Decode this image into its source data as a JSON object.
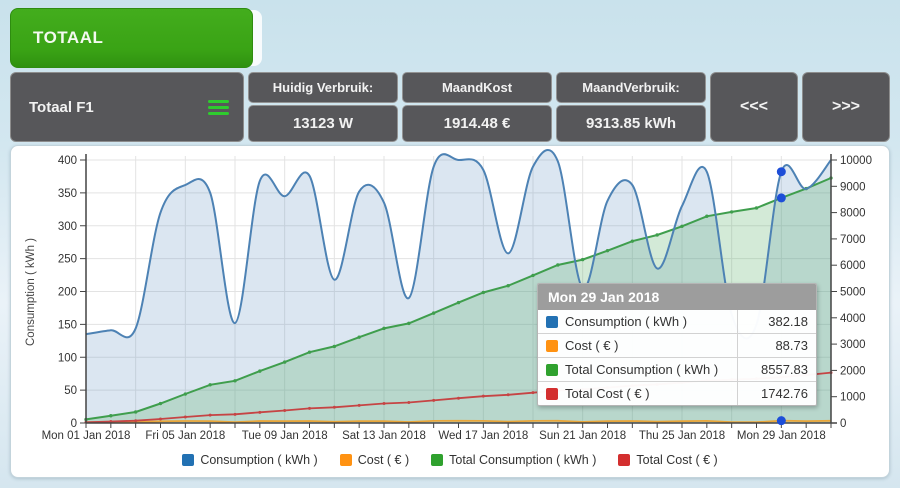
{
  "page": {
    "totaal_button": "TOTAAL"
  },
  "header": {
    "device_label": "Totaal F1",
    "menu_icon": "hamburger-icon",
    "stats": [
      {
        "label": "Huidig Verbruik:",
        "value": "13123 W"
      },
      {
        "label": "MaandKost",
        "value": "1914.48 €"
      },
      {
        "label": "MaandVerbruik:",
        "value": "9313.85 kWh"
      }
    ],
    "nav_prev": "<<<",
    "nav_next": ">>>"
  },
  "chart_data": {
    "type": "area",
    "title": "",
    "x_days": 31,
    "x_label_days": [
      1,
      5,
      9,
      13,
      17,
      21,
      25,
      29
    ],
    "x_tick_labels": [
      "Mon 01 Jan 2018",
      "Fri 05 Jan 2018",
      "Tue 09 Jan 2018",
      "Sat 13 Jan 2018",
      "Wed 17 Jan 2018",
      "Sun 21 Jan 2018",
      "Thu 25 Jan 2018",
      "Mon 29 Jan 2018"
    ],
    "left_axis": {
      "label": "Consumption ( kWh )",
      "min": 0,
      "max": 400,
      "step": 50
    },
    "right_axis": {
      "min": 0,
      "max": 10000,
      "step": 1000
    },
    "grid": true,
    "legend_position": "bottom",
    "series": [
      {
        "name": "Consumption ( kWh )",
        "axis": "left",
        "type": "area",
        "smooth": true,
        "color": "#4d82b4",
        "fill": "rgba(90,140,190,0.22)",
        "values": [
          135,
          141,
          144,
          320,
          362,
          350,
          152,
          368,
          345,
          376,
          218,
          352,
          335,
          190,
          390,
          400,
          385,
          258,
          390,
          398,
          205,
          338,
          362,
          235,
          330,
          382,
          165,
          150,
          382.18,
          356,
          400
        ]
      },
      {
        "name": "Cost ( € )",
        "axis": "right",
        "type": "line",
        "smooth": false,
        "color": "#e9a63a",
        "fill": null,
        "values": [
          27.8,
          29.0,
          29.6,
          65.8,
          74.4,
          72.0,
          31.3,
          75.7,
          70.9,
          77.3,
          44.8,
          72.4,
          68.9,
          39.1,
          80.2,
          82.2,
          79.2,
          53.1,
          80.2,
          81.8,
          42.2,
          69.5,
          74.4,
          48.3,
          67.9,
          78.6,
          33.9,
          30.8,
          88.73,
          73.2,
          82.2
        ]
      },
      {
        "name": "Total Consumption ( kWh )",
        "axis": "right",
        "type": "area",
        "smooth": false,
        "color": "#3f9e4d",
        "fill": "rgba(80,170,95,0.25)",
        "values": [
          135,
          276,
          420,
          740,
          1102,
          1452,
          1604,
          1972,
          2317,
          2693,
          2911,
          3263,
          3598,
          3788,
          4178,
          4578,
          4963,
          5221,
          5611,
          6009,
          6214,
          6552,
          6914,
          7149,
          7479,
          7861,
          8026,
          8176,
          8557.83,
          8913.85,
          9313.85
        ]
      },
      {
        "name": "Total Cost ( € )",
        "axis": "right",
        "type": "line",
        "smooth": false,
        "color": "#c64444",
        "fill": null,
        "values": [
          27.8,
          56.8,
          86.4,
          152.2,
          226.6,
          298.6,
          329.9,
          405.6,
          476.5,
          553.8,
          598.6,
          671.0,
          739.9,
          779.0,
          859.2,
          941.4,
          1020.6,
          1073.7,
          1153.9,
          1235.7,
          1277.9,
          1347.4,
          1421.8,
          1470.1,
          1538.0,
          1616.6,
          1650.5,
          1681.3,
          1742.76,
          1822.0,
          1914.48
        ]
      }
    ],
    "highlight": {
      "day": 29,
      "color": "#1d4ed8",
      "points": [
        {
          "axis": "left",
          "value": 382.18
        },
        {
          "axis": "right",
          "value": 8557.83
        },
        {
          "axis": "right",
          "value": 88.73
        }
      ]
    },
    "legend": [
      {
        "label": "Consumption ( kWh )",
        "color": "#2271b3"
      },
      {
        "label": "Cost ( € )",
        "color": "#ff9212"
      },
      {
        "label": "Total Consumption ( kWh )",
        "color": "#2fa12e"
      },
      {
        "label": "Total Cost ( € )",
        "color": "#d32f2f"
      }
    ]
  },
  "tooltip": {
    "title": "Mon 29 Jan 2018",
    "rows": [
      {
        "label": "Consumption ( kWh )",
        "value": "382.18",
        "color": "#2271b3"
      },
      {
        "label": "Cost ( € )",
        "value": "88.73",
        "color": "#ff9212"
      },
      {
        "label": "Total Consumption ( kWh )",
        "value": "8557.83",
        "color": "#2fa12e"
      },
      {
        "label": "Total Cost ( € )",
        "value": "1742.76",
        "color": "#d32f2f"
      }
    ]
  }
}
